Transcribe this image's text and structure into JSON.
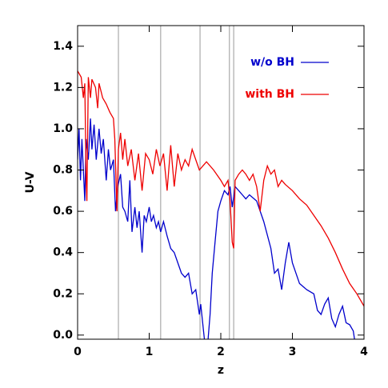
{
  "chart_data": {
    "type": "line",
    "xlabel": "z",
    "ylabel": "U-V",
    "xlim": [
      0,
      4
    ],
    "ylim": [
      -0.02,
      1.5
    ],
    "xticks": [
      0,
      1,
      2,
      3,
      4
    ],
    "yticks": [
      {
        "value": 0,
        "label": "0.0"
      },
      {
        "value": 0.2,
        "label": "0.2"
      },
      {
        "value": 0.4,
        "label": "0.4"
      },
      {
        "value": 0.6,
        "label": "0.6"
      },
      {
        "value": 0.8,
        "label": "0.8"
      },
      {
        "value": 1.0,
        "label": "1.0"
      },
      {
        "value": 1.2,
        "label": "1.2"
      },
      {
        "value": 1.4,
        "label": "1.4"
      }
    ],
    "vertical_lines": [
      0.57,
      1.16,
      1.71,
      2.12,
      2.18
    ],
    "vertical_line_color": "#aaaaaa",
    "legend": "upper right",
    "series": [
      {
        "name": "w/o BH",
        "color": "#0000cc",
        "x": [
          0.0,
          0.02,
          0.04,
          0.06,
          0.08,
          0.1,
          0.12,
          0.15,
          0.18,
          0.2,
          0.23,
          0.26,
          0.3,
          0.33,
          0.36,
          0.4,
          0.43,
          0.46,
          0.5,
          0.53,
          0.56,
          0.6,
          0.63,
          0.66,
          0.7,
          0.73,
          0.76,
          0.8,
          0.83,
          0.86,
          0.9,
          0.93,
          0.96,
          1.0,
          1.03,
          1.06,
          1.1,
          1.13,
          1.16,
          1.2,
          1.25,
          1.3,
          1.35,
          1.4,
          1.45,
          1.5,
          1.55,
          1.6,
          1.65,
          1.7,
          1.72,
          1.75,
          1.78,
          1.82,
          1.85,
          1.88,
          1.92,
          1.96,
          2.0,
          2.05,
          2.1,
          2.13,
          2.16,
          2.2,
          2.25,
          2.3,
          2.35,
          2.4,
          2.5,
          2.6,
          2.7,
          2.75,
          2.8,
          2.85,
          2.9,
          2.95,
          3.0,
          3.1,
          3.2,
          3.3,
          3.35,
          3.4,
          3.45,
          3.5,
          3.55,
          3.6,
          3.65,
          3.7,
          3.75,
          3.8,
          3.85,
          3.88
        ],
        "values": [
          0.85,
          1.0,
          0.75,
          0.95,
          0.8,
          0.65,
          0.95,
          0.85,
          1.05,
          0.9,
          1.02,
          0.85,
          1.0,
          0.88,
          0.95,
          0.75,
          0.9,
          0.8,
          0.85,
          0.6,
          0.72,
          0.78,
          0.62,
          0.6,
          0.55,
          0.75,
          0.5,
          0.62,
          0.52,
          0.6,
          0.4,
          0.58,
          0.55,
          0.62,
          0.55,
          0.58,
          0.52,
          0.55,
          0.5,
          0.55,
          0.48,
          0.42,
          0.4,
          0.35,
          0.3,
          0.28,
          0.3,
          0.2,
          0.22,
          0.1,
          0.15,
          0.05,
          -0.05,
          -0.03,
          0.1,
          0.3,
          0.45,
          0.6,
          0.65,
          0.7,
          0.68,
          0.72,
          0.62,
          0.72,
          0.7,
          0.68,
          0.66,
          0.68,
          0.65,
          0.55,
          0.42,
          0.3,
          0.32,
          0.22,
          0.35,
          0.45,
          0.35,
          0.25,
          0.22,
          0.2,
          0.12,
          0.1,
          0.15,
          0.18,
          0.08,
          0.04,
          0.1,
          0.14,
          0.06,
          0.05,
          0.02,
          -0.05
        ]
      },
      {
        "name": "with BH",
        "color": "#ee0000",
        "x": [
          0.0,
          0.05,
          0.08,
          0.1,
          0.12,
          0.13,
          0.15,
          0.18,
          0.2,
          0.25,
          0.28,
          0.3,
          0.35,
          0.4,
          0.45,
          0.5,
          0.52,
          0.55,
          0.57,
          0.6,
          0.63,
          0.66,
          0.7,
          0.75,
          0.8,
          0.85,
          0.9,
          0.95,
          1.0,
          1.05,
          1.1,
          1.15,
          1.2,
          1.25,
          1.3,
          1.35,
          1.4,
          1.45,
          1.5,
          1.55,
          1.6,
          1.65,
          1.7,
          1.8,
          1.9,
          2.0,
          2.05,
          2.1,
          2.13,
          2.16,
          2.18,
          2.2,
          2.25,
          2.3,
          2.35,
          2.4,
          2.45,
          2.5,
          2.55,
          2.6,
          2.65,
          2.7,
          2.75,
          2.8,
          2.85,
          2.9,
          3.0,
          3.1,
          3.2,
          3.3,
          3.4,
          3.5,
          3.6,
          3.7,
          3.8,
          3.9,
          4.0
        ],
        "values": [
          1.28,
          1.25,
          1.15,
          1.22,
          0.75,
          0.65,
          1.25,
          1.15,
          1.24,
          1.2,
          1.1,
          1.22,
          1.15,
          1.12,
          1.08,
          1.05,
          0.95,
          0.6,
          0.9,
          0.98,
          0.85,
          0.95,
          0.82,
          0.9,
          0.75,
          0.88,
          0.7,
          0.88,
          0.85,
          0.78,
          0.9,
          0.82,
          0.88,
          0.7,
          0.92,
          0.72,
          0.88,
          0.8,
          0.85,
          0.82,
          0.9,
          0.85,
          0.8,
          0.84,
          0.8,
          0.75,
          0.72,
          0.75,
          0.65,
          0.45,
          0.42,
          0.75,
          0.78,
          0.8,
          0.78,
          0.75,
          0.78,
          0.72,
          0.6,
          0.75,
          0.82,
          0.78,
          0.8,
          0.72,
          0.75,
          0.73,
          0.7,
          0.66,
          0.63,
          0.58,
          0.53,
          0.47,
          0.4,
          0.32,
          0.25,
          0.2,
          0.14
        ]
      }
    ]
  }
}
